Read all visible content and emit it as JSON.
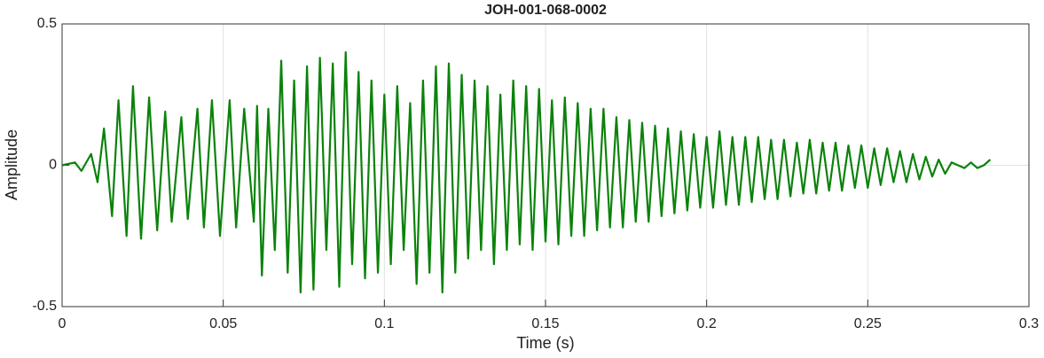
{
  "chart_data": {
    "type": "line",
    "title": "JOH-001-068-0002",
    "xlabel": "Time (s)",
    "ylabel": "Amplitude",
    "color": "#0b820b",
    "xlim": [
      0,
      0.3
    ],
    "xticks": [
      0,
      0.05,
      0.1,
      0.15,
      0.2,
      0.25,
      0.3
    ],
    "ylim": [
      -0.5,
      0.5
    ],
    "yticks": [
      -0.5,
      0,
      0.5
    ],
    "grid": true,
    "x": [
      0,
      0.004,
      0.006,
      0.009,
      0.011,
      0.013,
      0.0155,
      0.0175,
      0.02,
      0.022,
      0.0245,
      0.027,
      0.0295,
      0.032,
      0.034,
      0.037,
      0.039,
      0.042,
      0.044,
      0.0465,
      0.049,
      0.052,
      0.054,
      0.0565,
      0.0595,
      0.0605,
      0.062,
      0.064,
      0.066,
      0.068,
      0.07,
      0.072,
      0.074,
      0.076,
      0.078,
      0.08,
      0.082,
      0.084,
      0.086,
      0.088,
      0.09,
      0.092,
      0.094,
      0.096,
      0.098,
      0.1,
      0.102,
      0.104,
      0.106,
      0.108,
      0.11,
      0.112,
      0.114,
      0.116,
      0.118,
      0.12,
      0.122,
      0.124,
      0.126,
      0.128,
      0.13,
      0.132,
      0.134,
      0.136,
      0.138,
      0.14,
      0.142,
      0.144,
      0.146,
      0.148,
      0.15,
      0.152,
      0.154,
      0.156,
      0.158,
      0.16,
      0.162,
      0.164,
      0.166,
      0.168,
      0.17,
      0.172,
      0.174,
      0.176,
      0.178,
      0.18,
      0.182,
      0.184,
      0.186,
      0.188,
      0.19,
      0.192,
      0.194,
      0.196,
      0.198,
      0.2,
      0.202,
      0.204,
      0.206,
      0.208,
      0.21,
      0.212,
      0.214,
      0.216,
      0.218,
      0.22,
      0.222,
      0.224,
      0.226,
      0.228,
      0.23,
      0.232,
      0.234,
      0.236,
      0.238,
      0.24,
      0.242,
      0.244,
      0.246,
      0.248,
      0.25,
      0.252,
      0.254,
      0.256,
      0.258,
      0.26,
      0.262,
      0.264,
      0.266,
      0.268,
      0.27,
      0.272,
      0.274,
      0.276,
      0.278,
      0.28,
      0.282,
      0.284,
      0.286,
      0.288
    ],
    "values": [
      0,
      0.01,
      -0.02,
      0.04,
      -0.06,
      0.13,
      -0.18,
      0.23,
      -0.25,
      0.28,
      -0.26,
      0.24,
      -0.23,
      0.19,
      -0.2,
      0.17,
      -0.19,
      0.2,
      -0.22,
      0.23,
      -0.25,
      0.23,
      -0.22,
      0.2,
      -0.2,
      0.21,
      -0.39,
      0.2,
      -0.3,
      0.37,
      -0.38,
      0.3,
      -0.45,
      0.35,
      -0.44,
      0.38,
      -0.3,
      0.36,
      -0.43,
      0.4,
      -0.35,
      0.33,
      -0.4,
      0.3,
      -0.38,
      0.25,
      -0.35,
      0.28,
      -0.3,
      0.22,
      -0.42,
      0.3,
      -0.38,
      0.35,
      -0.45,
      0.36,
      -0.38,
      0.32,
      -0.33,
      0.3,
      -0.3,
      0.28,
      -0.35,
      0.25,
      -0.3,
      0.3,
      -0.28,
      0.28,
      -0.3,
      0.27,
      -0.27,
      0.23,
      -0.28,
      0.24,
      -0.25,
      0.22,
      -0.25,
      0.2,
      -0.23,
      0.2,
      -0.22,
      0.17,
      -0.22,
      0.16,
      -0.2,
      0.15,
      -0.2,
      0.14,
      -0.18,
      0.13,
      -0.17,
      0.12,
      -0.16,
      0.11,
      -0.15,
      0.1,
      -0.15,
      0.12,
      -0.14,
      0.1,
      -0.14,
      0.1,
      -0.13,
      0.1,
      -0.12,
      0.09,
      -0.12,
      0.09,
      -0.11,
      0.08,
      -0.1,
      0.09,
      -0.1,
      0.08,
      -0.09,
      0.08,
      -0.09,
      0.07,
      -0.08,
      0.07,
      -0.08,
      0.06,
      -0.07,
      0.06,
      -0.06,
      0.05,
      -0.06,
      0.04,
      -0.05,
      0.03,
      -0.04,
      0.02,
      -0.03,
      0.01,
      0,
      -0.01,
      0.01,
      -0.01,
      0,
      0.02
    ]
  }
}
